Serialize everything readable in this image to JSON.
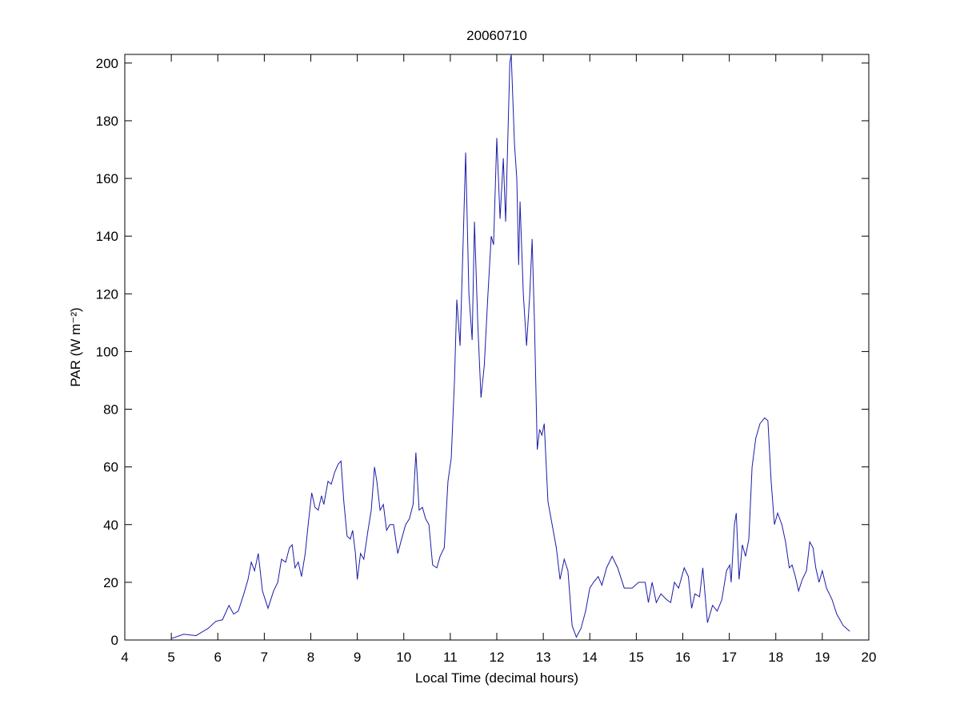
{
  "chart_data": {
    "type": "line",
    "title": "20060710",
    "xlabel": "Local Time (decimal hours)",
    "ylabel": "PAR (W m⁻²)",
    "xlim": [
      4,
      20
    ],
    "xticks": [
      4,
      5,
      6,
      7,
      8,
      9,
      10,
      11,
      12,
      13,
      14,
      15,
      16,
      17,
      18,
      19,
      20
    ],
    "ylim": [
      0,
      203
    ],
    "yticks": [
      0,
      20,
      40,
      60,
      80,
      100,
      120,
      140,
      160,
      180,
      200
    ],
    "grid": false,
    "box": true,
    "series": [
      {
        "color": "#1c1ca8",
        "x": [
          5.0,
          5.27,
          5.53,
          5.79,
          5.96,
          6.1,
          6.24,
          6.34,
          6.44,
          6.56,
          6.65,
          6.72,
          6.79,
          6.87,
          6.96,
          7.08,
          7.2,
          7.29,
          7.37,
          7.46,
          7.54,
          7.6,
          7.66,
          7.73,
          7.8,
          7.88,
          7.95,
          8.02,
          8.09,
          8.16,
          8.23,
          8.28,
          8.37,
          8.44,
          8.51,
          8.59,
          8.65,
          8.71,
          8.78,
          8.85,
          8.9,
          8.96,
          9.0,
          9.07,
          9.14,
          9.23,
          9.3,
          9.37,
          9.42,
          9.49,
          9.56,
          9.63,
          9.7,
          9.78,
          9.87,
          9.97,
          10.04,
          10.12,
          10.2,
          10.26,
          10.33,
          10.4,
          10.47,
          10.54,
          10.62,
          10.71,
          10.78,
          10.87,
          10.95,
          11.02,
          11.09,
          11.14,
          11.21,
          11.28,
          11.33,
          11.4,
          11.47,
          11.52,
          11.59,
          11.66,
          11.73,
          11.81,
          11.88,
          11.93,
          12.0,
          12.07,
          12.14,
          12.19,
          12.28,
          12.31,
          12.38,
          12.43,
          12.47,
          12.5,
          12.57,
          12.64,
          12.71,
          12.76,
          12.81,
          12.87,
          12.92,
          12.97,
          13.02,
          13.1,
          13.19,
          13.28,
          13.36,
          13.45,
          13.53,
          13.62,
          13.71,
          13.81,
          13.91,
          14.0,
          14.08,
          14.18,
          14.26,
          14.36,
          14.48,
          14.6,
          14.74,
          14.91,
          15.05,
          15.19,
          15.26,
          15.34,
          15.43,
          15.53,
          15.65,
          15.74,
          15.82,
          15.91,
          16.03,
          16.12,
          16.19,
          16.26,
          16.36,
          16.43,
          16.53,
          16.64,
          16.74,
          16.84,
          16.94,
          17.01,
          17.04,
          17.11,
          17.15,
          17.21,
          17.28,
          17.35,
          17.42,
          17.49,
          17.57,
          17.66,
          17.76,
          17.83,
          17.9,
          17.97,
          18.04,
          18.13,
          18.21,
          18.29,
          18.35,
          18.42,
          18.49,
          18.57,
          18.66,
          18.73,
          18.8,
          18.86,
          18.93,
          19.0,
          19.09,
          19.21,
          19.31,
          19.45,
          19.59
        ],
        "values": [
          0.5,
          2,
          1.5,
          4,
          6.5,
          7,
          12,
          9,
          10,
          16,
          21,
          27,
          24,
          30,
          17,
          11,
          17,
          20,
          28,
          27,
          32,
          33,
          25,
          27,
          22,
          30,
          41,
          51,
          46,
          45,
          50,
          47,
          55,
          54,
          58,
          61,
          62,
          48,
          36,
          35,
          38,
          30,
          21,
          30,
          28,
          38,
          45,
          60,
          55,
          45,
          47,
          38,
          40,
          40,
          30,
          36,
          40,
          42,
          47,
          65,
          45,
          46,
          42,
          40,
          26,
          25,
          29,
          32,
          55,
          63,
          90,
          118,
          102,
          140,
          169,
          120,
          104,
          145,
          110,
          84,
          95,
          120,
          140,
          137,
          174,
          146,
          167,
          145,
          200,
          203,
          172,
          160,
          130,
          152,
          120,
          102,
          120,
          139,
          110,
          66,
          73,
          71,
          75,
          48,
          40,
          32,
          21,
          28,
          24,
          5,
          1,
          4,
          10,
          18,
          20,
          22,
          19,
          25,
          29,
          25,
          18,
          18,
          20,
          20,
          13,
          20,
          13,
          16,
          14,
          13,
          20,
          18,
          25,
          22,
          11,
          16,
          15,
          25,
          6,
          12,
          10,
          14,
          24,
          26,
          20,
          40,
          44,
          21,
          33,
          29,
          35,
          60,
          70,
          75,
          77,
          76,
          55,
          40,
          44,
          40,
          34,
          25,
          26,
          22,
          17,
          21,
          24,
          34,
          32,
          25,
          20,
          24,
          18,
          14,
          9,
          5,
          3
        ]
      }
    ]
  }
}
